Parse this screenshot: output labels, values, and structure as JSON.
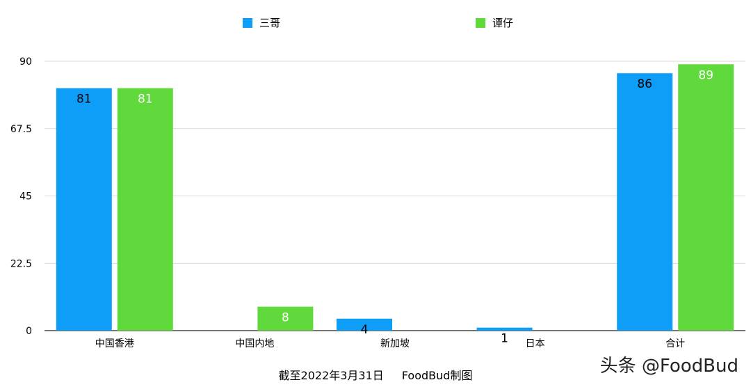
{
  "chart_data": {
    "type": "bar",
    "categories": [
      "中国香港",
      "中国内地",
      "新加坡",
      "日本",
      "合计"
    ],
    "series": [
      {
        "name": "三哥",
        "values": [
          81,
          null,
          4,
          1,
          86
        ],
        "color": "#0f9ef7",
        "label_color": "#000000"
      },
      {
        "name": "谭仔",
        "values": [
          81,
          8,
          null,
          null,
          89
        ],
        "color": "#5fd93c",
        "label_color": "#ffffff"
      }
    ],
    "yticks": [
      "0",
      "22.5",
      "45",
      "67.5",
      "90"
    ],
    "ylim": [
      0,
      90
    ],
    "grid": true,
    "legend_position": "top"
  },
  "footer": {
    "note": "截至2022年3月31日",
    "credit": "FoodBud制图"
  },
  "watermark": "头条 @FoodBud",
  "colors": {
    "gridline": "#d9d9d9",
    "axis": "#222222"
  }
}
